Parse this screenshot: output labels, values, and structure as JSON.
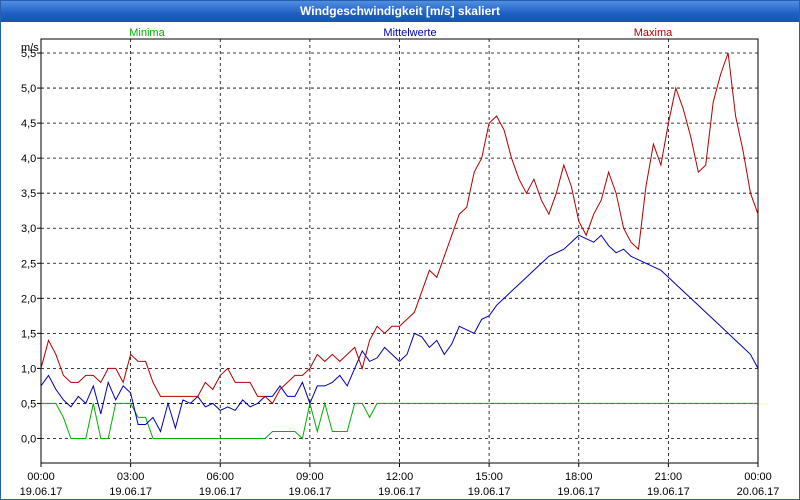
{
  "window": {
    "title": "Windgeschwindigkeit [m/s] skaliert"
  },
  "chart_data": {
    "type": "line",
    "title": "Windgeschwindigkeit [m/s] skaliert",
    "ylabel": "m/s",
    "ylim": [
      -0.35,
      5.7
    ],
    "xlim": [
      0,
      96
    ],
    "grid": true,
    "yticks": [
      {
        "v": 0.0,
        "label": "0,0"
      },
      {
        "v": 0.5,
        "label": "0,5"
      },
      {
        "v": 1.0,
        "label": "1,0"
      },
      {
        "v": 1.5,
        "label": "1,5"
      },
      {
        "v": 2.0,
        "label": "2,0"
      },
      {
        "v": 2.5,
        "label": "2,5"
      },
      {
        "v": 3.0,
        "label": "3,0"
      },
      {
        "v": 3.5,
        "label": "3,5"
      },
      {
        "v": 4.0,
        "label": "4,0"
      },
      {
        "v": 4.5,
        "label": "4,5"
      },
      {
        "v": 5.0,
        "label": "5,0"
      },
      {
        "v": 5.5,
        "label": "5,5"
      }
    ],
    "xticks": [
      {
        "h": 0,
        "time": "00:00",
        "date": "19.06.17"
      },
      {
        "h": 3,
        "time": "03:00",
        "date": "19.06.17"
      },
      {
        "h": 6,
        "time": "06:00",
        "date": "19.06.17"
      },
      {
        "h": 9,
        "time": "09:00",
        "date": "19.06.17"
      },
      {
        "h": 12,
        "time": "12:00",
        "date": "19.06.17"
      },
      {
        "h": 15,
        "time": "15:00",
        "date": "19.06.17"
      },
      {
        "h": 18,
        "time": "18:00",
        "date": "19.06.17"
      },
      {
        "h": 21,
        "time": "21:00",
        "date": "19.06.17"
      },
      {
        "h": 24,
        "time": "00:00",
        "date": "20.06.17"
      }
    ],
    "x_unit": "15-minute intervals from 19.06.17 00:00",
    "series": [
      {
        "name": "Minima",
        "color": "#00b000",
        "legend_pos": "left",
        "values": [
          0.5,
          0.5,
          0.5,
          0.3,
          0.0,
          0.0,
          0.0,
          0.5,
          0.0,
          0.0,
          0.5,
          0.5,
          0.5,
          0.3,
          0.3,
          0.0,
          0.0,
          0.0,
          0.0,
          0.0,
          0.0,
          0.0,
          0.0,
          0.0,
          0.0,
          0.0,
          0.0,
          0.0,
          0.0,
          0.0,
          0.0,
          0.1,
          0.1,
          0.1,
          0.1,
          0.0,
          0.5,
          0.1,
          0.5,
          0.1,
          0.1,
          0.1,
          0.5,
          0.5,
          0.3,
          0.5,
          0.5,
          0.5,
          0.5,
          0.5,
          0.5,
          0.5,
          0.5,
          0.5,
          0.5,
          0.5,
          0.5,
          0.5,
          0.5,
          0.5,
          0.5,
          0.5,
          0.5,
          0.5,
          0.5,
          0.5,
          0.5,
          0.5,
          0.5,
          0.5,
          0.5,
          0.5,
          0.5,
          0.5,
          0.5,
          0.5,
          0.5,
          0.5,
          0.5,
          0.5,
          0.5,
          0.5,
          0.5,
          0.5,
          0.5,
          0.5,
          0.5,
          0.5,
          0.5,
          0.5,
          0.5,
          0.5,
          0.5,
          0.5,
          0.5,
          0.5,
          0.5
        ]
      },
      {
        "name": "Mittelwerte",
        "color": "#0000b0",
        "legend_pos": "center",
        "values": [
          0.75,
          0.9,
          0.7,
          0.55,
          0.45,
          0.6,
          0.5,
          0.75,
          0.35,
          0.8,
          0.55,
          0.75,
          0.65,
          0.2,
          0.2,
          0.3,
          0.1,
          0.5,
          0.15,
          0.55,
          0.5,
          0.6,
          0.45,
          0.5,
          0.4,
          0.45,
          0.4,
          0.55,
          0.45,
          0.5,
          0.6,
          0.6,
          0.75,
          0.6,
          0.6,
          0.8,
          0.5,
          0.75,
          0.75,
          0.8,
          0.9,
          0.75,
          1.0,
          1.25,
          1.1,
          1.15,
          1.3,
          1.2,
          1.1,
          1.2,
          1.5,
          1.45,
          1.3,
          1.4,
          1.2,
          1.35,
          1.6,
          1.55,
          1.5,
          1.7,
          1.75,
          1.9,
          2.0,
          2.1,
          2.2,
          2.3,
          2.4,
          2.5,
          2.6,
          2.65,
          2.7,
          2.8,
          2.9,
          2.85,
          2.8,
          2.9,
          2.75,
          2.65,
          2.7,
          2.6,
          2.55,
          2.5,
          2.45,
          2.4,
          2.3,
          2.2,
          2.1,
          2.0,
          1.9,
          1.8,
          1.7,
          1.6,
          1.5,
          1.4,
          1.3,
          1.2,
          1.0
        ]
      },
      {
        "name": "Maxima",
        "color": "#b00000",
        "legend_pos": "right",
        "values": [
          1.0,
          1.4,
          1.2,
          0.9,
          0.8,
          0.8,
          0.9,
          0.9,
          0.8,
          1.0,
          1.0,
          0.8,
          1.2,
          1.1,
          1.1,
          0.8,
          0.6,
          0.6,
          0.6,
          0.6,
          0.6,
          0.6,
          0.8,
          0.7,
          0.9,
          1.0,
          0.8,
          0.8,
          0.8,
          0.6,
          0.6,
          0.5,
          0.7,
          0.8,
          0.9,
          0.9,
          1.0,
          1.2,
          1.1,
          1.2,
          1.1,
          1.2,
          1.3,
          1.0,
          1.4,
          1.6,
          1.5,
          1.6,
          1.6,
          1.7,
          1.8,
          2.1,
          2.4,
          2.3,
          2.6,
          2.9,
          3.2,
          3.3,
          3.8,
          4.0,
          4.5,
          4.6,
          4.4,
          4.0,
          3.7,
          3.5,
          3.7,
          3.4,
          3.2,
          3.5,
          3.9,
          3.6,
          3.1,
          2.9,
          3.2,
          3.4,
          3.8,
          3.5,
          3.0,
          2.8,
          2.7,
          3.6,
          4.2,
          3.9,
          4.5,
          5.0,
          4.7,
          4.3,
          3.8,
          3.9,
          4.8,
          5.2,
          5.5,
          4.6,
          4.1,
          3.5,
          3.2
        ]
      }
    ]
  }
}
